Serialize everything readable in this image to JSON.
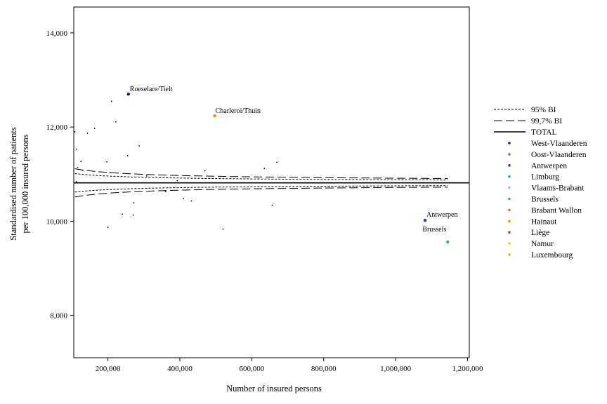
{
  "chart_data": {
    "type": "scatter",
    "title": "",
    "xlabel": "Number of insured persons",
    "ylabel": [
      "Standardised number of patients",
      "per 100,000 insured persons"
    ],
    "xlim": [
      105000,
      1205000
    ],
    "ylim": [
      7100,
      14550
    ],
    "x_ticks": [
      200000,
      400000,
      600000,
      800000,
      1000000,
      1200000
    ],
    "x_tick_labels": [
      "200,000",
      "400,000",
      "600,000",
      "800,000",
      "1,000,000",
      "1,200,000"
    ],
    "y_ticks": [
      8000,
      10000,
      12000,
      14000
    ],
    "y_tick_labels": [
      "8,000",
      "10,000",
      "12,000",
      "14,000"
    ],
    "grid": false,
    "legend_position": "right",
    "total": 10815,
    "limits": {
      "ci95": {
        "name": "95% BI",
        "z": 1.96
      },
      "ci997": {
        "name": "99,7% BI",
        "z": 3.0
      },
      "total": {
        "name": "TOTAL"
      }
    },
    "provinces": [
      {
        "name": "West-Vlaanderen",
        "color": "#1a1a8c"
      },
      {
        "name": "Oost-Vlaanderen",
        "color": "#4a78d8"
      },
      {
        "name": "Antwerpen",
        "color": "#1f3cd6"
      },
      {
        "name": "Limburg",
        "color": "#3a9ad9"
      },
      {
        "name": "Vlaams-Brabant",
        "color": "#87c6e8"
      },
      {
        "name": "Brussels",
        "color": "#3cb84a"
      },
      {
        "name": "Brabant Wallon",
        "color": "#d2693c"
      },
      {
        "name": "Hainaut",
        "color": "#f08a1c"
      },
      {
        "name": "Liège",
        "color": "#a0453c"
      },
      {
        "name": "Namur",
        "color": "#f2d21e"
      },
      {
        "name": "Luxembourg",
        "color": "#f0a830"
      }
    ],
    "points": [
      {
        "x": 108000,
        "y": 11900,
        "label": ""
      },
      {
        "x": 112000,
        "y": 11530,
        "label": ""
      },
      {
        "x": 116000,
        "y": 11140,
        "label": ""
      },
      {
        "x": 125000,
        "y": 11270,
        "label": ""
      },
      {
        "x": 130000,
        "y": 11080,
        "label": ""
      },
      {
        "x": 143000,
        "y": 11870,
        "label": ""
      },
      {
        "x": 163000,
        "y": 11970,
        "label": ""
      },
      {
        "x": 112000,
        "y": 10840,
        "label": ""
      },
      {
        "x": 197000,
        "y": 11260,
        "label": ""
      },
      {
        "x": 206000,
        "y": 11030,
        "label": ""
      },
      {
        "x": 210000,
        "y": 12550,
        "label": ""
      },
      {
        "x": 222000,
        "y": 12110,
        "label": ""
      },
      {
        "x": 255000,
        "y": 11390,
        "label": ""
      },
      {
        "x": 287000,
        "y": 11600,
        "label": ""
      },
      {
        "x": 308000,
        "y": 10960,
        "label": ""
      },
      {
        "x": 393000,
        "y": 10860,
        "label": ""
      },
      {
        "x": 470000,
        "y": 11070,
        "label": ""
      },
      {
        "x": 635000,
        "y": 11120,
        "label": ""
      },
      {
        "x": 670000,
        "y": 11250,
        "label": ""
      },
      {
        "x": 257000,
        "y": 12700,
        "label": "Roeselare/Tielt",
        "color": "#1a1a8c"
      },
      {
        "x": 497000,
        "y": 12240,
        "label": "Charleroi/Thuin",
        "color": "#f08a1c"
      },
      {
        "x": 360000,
        "y": 10630,
        "label": ""
      },
      {
        "x": 410000,
        "y": 10480,
        "label": ""
      },
      {
        "x": 432000,
        "y": 10430,
        "label": ""
      },
      {
        "x": 272000,
        "y": 10390,
        "label": ""
      },
      {
        "x": 240000,
        "y": 10150,
        "label": ""
      },
      {
        "x": 270000,
        "y": 10130,
        "label": ""
      },
      {
        "x": 200000,
        "y": 9870,
        "label": ""
      },
      {
        "x": 520000,
        "y": 9830,
        "label": ""
      },
      {
        "x": 657000,
        "y": 10340,
        "label": ""
      },
      {
        "x": 1082000,
        "y": 10020,
        "label": "Antwerpen",
        "color": "#1f3cd6"
      },
      {
        "x": 1145000,
        "y": 9560,
        "label": "Brussels",
        "color": "#3cb84a"
      }
    ],
    "annotations": [
      "Roeselare/Tielt",
      "Charleroi/Thuin",
      "Antwerpen",
      "Brussels"
    ]
  }
}
